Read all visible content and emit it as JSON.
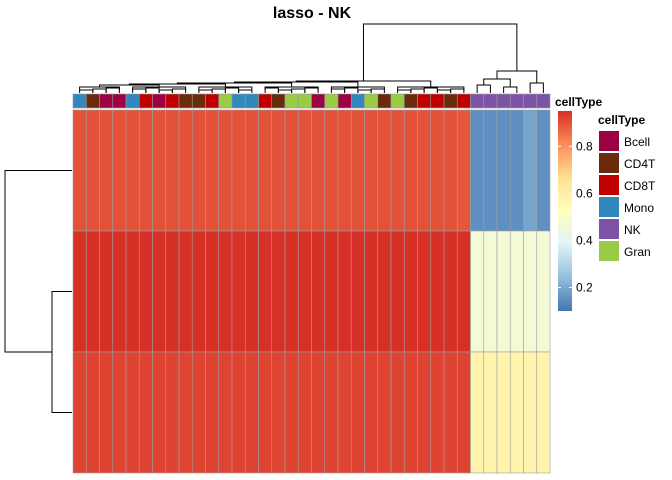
{
  "chart_data": {
    "type": "heatmap",
    "title": "lasso - NK",
    "annotation_label": "cellType",
    "colorbar": {
      "ticks": [
        0.2,
        0.4,
        0.6,
        0.8
      ],
      "tick_labels": [
        "0.2",
        "0.4",
        "0.6",
        "0.8"
      ],
      "min": 0.1,
      "max": 0.95,
      "stops": [
        "#4575B4",
        "#91BFDB",
        "#E0F3F8",
        "#FFFFBF",
        "#FEE090",
        "#FC8D59",
        "#D73027"
      ]
    },
    "legend": {
      "title": "cellType",
      "entries": [
        {
          "label": "Bcell",
          "color": "#9E0142"
        },
        {
          "label": "CD4T",
          "color": "#6A2A0C"
        },
        {
          "label": "CD8T",
          "color": "#C00000"
        },
        {
          "label": "Mono",
          "color": "#3288BD"
        },
        {
          "label": "NK",
          "color": "#7D54A5"
        },
        {
          "label": "Gran",
          "color": "#99CC44"
        }
      ]
    },
    "column_celltypes": [
      "Mono",
      "CD4T",
      "Bcell",
      "Bcell",
      "Mono",
      "CD8T",
      "Bcell",
      "CD8T",
      "CD4T",
      "CD4T",
      "CD8T",
      "Gran",
      "Mono",
      "Mono",
      "CD8T",
      "CD4T",
      "Gran",
      "Gran",
      "Bcell",
      "Gran",
      "Bcell",
      "Mono",
      "Gran",
      "CD4T",
      "Gran",
      "CD4T",
      "CD8T",
      "CD8T",
      "CD4T",
      "CD8T",
      "NK",
      "NK",
      "NK",
      "NK",
      "NK",
      "NK"
    ],
    "row_values": [
      [
        0.9,
        0.9,
        0.9,
        0.9,
        0.9,
        0.9,
        0.9,
        0.9,
        0.9,
        0.9,
        0.9,
        0.9,
        0.9,
        0.9,
        0.9,
        0.9,
        0.9,
        0.9,
        0.9,
        0.9,
        0.9,
        0.9,
        0.9,
        0.9,
        0.9,
        0.9,
        0.9,
        0.9,
        0.9,
        0.89,
        0.15,
        0.15,
        0.15,
        0.15,
        0.19,
        0.15
      ],
      [
        0.95,
        0.95,
        0.95,
        0.95,
        0.95,
        0.95,
        0.95,
        0.95,
        0.95,
        0.95,
        0.95,
        0.95,
        0.95,
        0.95,
        0.95,
        0.95,
        0.95,
        0.95,
        0.95,
        0.95,
        0.95,
        0.95,
        0.95,
        0.95,
        0.95,
        0.95,
        0.95,
        0.95,
        0.95,
        0.95,
        0.47,
        0.47,
        0.47,
        0.47,
        0.47,
        0.47
      ],
      [
        0.92,
        0.92,
        0.92,
        0.92,
        0.92,
        0.92,
        0.92,
        0.92,
        0.92,
        0.92,
        0.92,
        0.92,
        0.92,
        0.92,
        0.92,
        0.92,
        0.92,
        0.92,
        0.92,
        0.92,
        0.92,
        0.92,
        0.92,
        0.92,
        0.92,
        0.92,
        0.92,
        0.92,
        0.92,
        0.92,
        0.58,
        0.58,
        0.58,
        0.58,
        0.58,
        0.58
      ]
    ]
  }
}
